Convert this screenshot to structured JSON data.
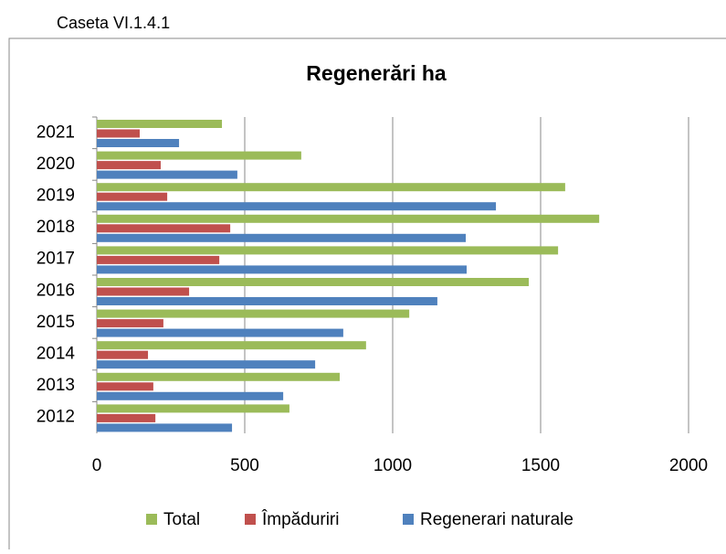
{
  "chart_data": {
    "type": "hbar",
    "caption": "Caseta VI.1.4.1",
    "title": "Regenerări ha",
    "categories": [
      "2012",
      "2013",
      "2014",
      "2015",
      "2016",
      "2017",
      "2018",
      "2019",
      "2020",
      "2021"
    ],
    "series": [
      {
        "name": "Total",
        "color": "#9bbb59",
        "values": [
          651,
          821,
          910,
          1056,
          1460,
          1559,
          1698,
          1583,
          691,
          423
        ]
      },
      {
        "name": "Împăduriri",
        "color": "#c0504d",
        "values": [
          198,
          191,
          173,
          225,
          312,
          414,
          451,
          238,
          216,
          145
        ]
      },
      {
        "name": "Regenerari naturale",
        "color": "#4f81bd",
        "values": [
          457,
          630,
          738,
          833,
          1151,
          1250,
          1247,
          1349,
          475,
          278
        ]
      }
    ],
    "xlim": [
      0,
      2000
    ],
    "xticks": [
      0,
      500,
      1000,
      1500,
      2000
    ],
    "grid": true,
    "legend": "bottom"
  }
}
